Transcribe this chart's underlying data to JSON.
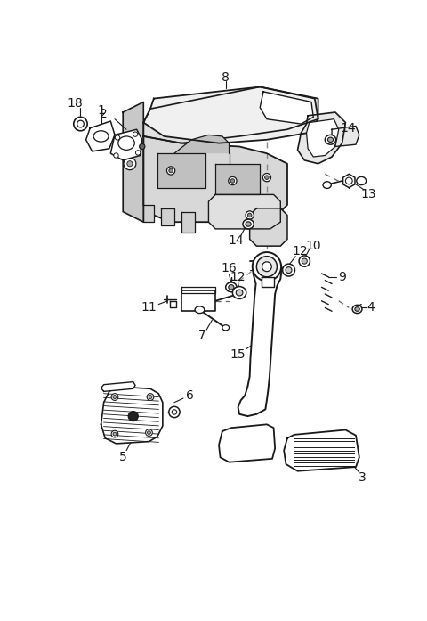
{
  "bg_color": "#ffffff",
  "line_color": "#1a1a1a",
  "fig_width": 4.8,
  "fig_height": 6.97,
  "dpi": 100
}
